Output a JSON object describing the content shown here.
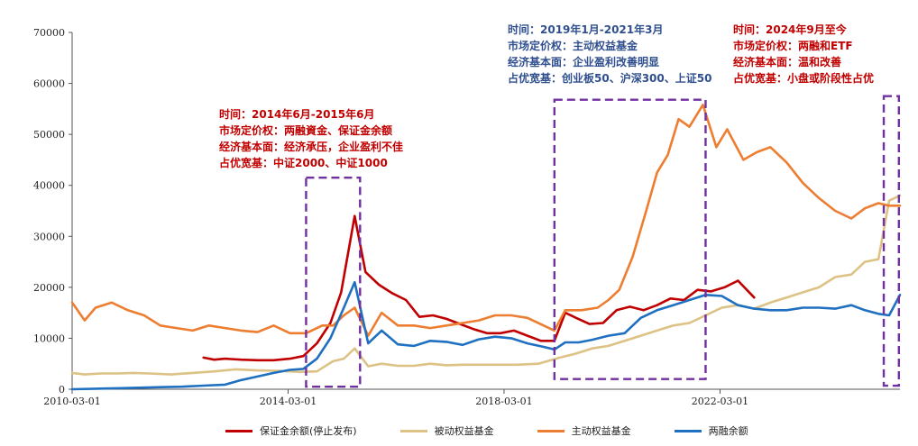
{
  "chart_data": {
    "type": "line",
    "title": "",
    "xlabel": "",
    "ylabel": "",
    "ylim": [
      0,
      70000
    ],
    "yticks": [
      0,
      10000,
      20000,
      30000,
      40000,
      50000,
      60000,
      70000
    ],
    "ytick_labels": [
      "0",
      "10000",
      "20000",
      "30000",
      "40000",
      "50000",
      "60000",
      "70000"
    ],
    "x_range": [
      2010.167,
      2025.5
    ],
    "xticks": [
      {
        "value": 2010.167,
        "label": "2010-03-01"
      },
      {
        "value": 2014.167,
        "label": "2014-03-01"
      },
      {
        "value": 2018.167,
        "label": "2018-03-01"
      },
      {
        "value": 2022.167,
        "label": "2022-03-01"
      }
    ],
    "series": [
      {
        "name": "保证金余额(停止发布)",
        "color": "#c00000",
        "x": [
          2012.6,
          2012.8,
          2013.0,
          2013.3,
          2013.6,
          2013.9,
          2014.2,
          2014.45,
          2014.7,
          2014.95,
          2015.15,
          2015.4,
          2015.6,
          2015.85,
          2016.1,
          2016.35,
          2016.6,
          2016.85,
          2017.1,
          2017.35,
          2017.6,
          2017.85,
          2018.1,
          2018.35,
          2018.6,
          2018.85,
          2019.1,
          2019.3,
          2019.5,
          2019.75,
          2020.0,
          2020.25,
          2020.5,
          2020.75,
          2021.0,
          2021.25,
          2021.5,
          2021.75,
          2022.0,
          2022.25,
          2022.5,
          2022.8
        ],
        "values": [
          6200,
          5800,
          6000,
          5800,
          5700,
          5700,
          6000,
          6500,
          9000,
          13000,
          19000,
          34000,
          23000,
          20500,
          18800,
          17500,
          14200,
          14500,
          13800,
          12800,
          11800,
          11000,
          11000,
          11500,
          10500,
          9500,
          9500,
          15000,
          14000,
          12800,
          13000,
          15500,
          16200,
          15500,
          16500,
          17800,
          17500,
          19500,
          19200,
          20000,
          21300,
          18000
        ]
      },
      {
        "name": "被动权益基金",
        "color": "#dcc285",
        "x": [
          2010.167,
          2010.4,
          2010.7,
          2011.0,
          2011.3,
          2011.6,
          2012.0,
          2012.4,
          2012.8,
          2013.2,
          2013.6,
          2014.0,
          2014.4,
          2014.7,
          2015.0,
          2015.2,
          2015.4,
          2015.65,
          2015.9,
          2016.2,
          2016.5,
          2016.8,
          2017.1,
          2017.4,
          2017.7,
          2018.0,
          2018.4,
          2018.8,
          2019.2,
          2019.5,
          2019.8,
          2020.1,
          2020.4,
          2020.7,
          2021.0,
          2021.3,
          2021.6,
          2021.9,
          2022.2,
          2022.5,
          2022.8,
          2023.1,
          2023.4,
          2023.7,
          2024.0,
          2024.3,
          2024.6,
          2024.85,
          2025.1,
          2025.3,
          2025.5
        ],
        "values": [
          3200,
          2900,
          3100,
          3100,
          3200,
          3100,
          2900,
          3200,
          3500,
          3900,
          3700,
          3600,
          3400,
          3500,
          5500,
          6000,
          8000,
          4500,
          5000,
          4600,
          4600,
          5000,
          4700,
          4800,
          4800,
          4800,
          4800,
          5000,
          6200,
          7000,
          8000,
          8500,
          9500,
          10500,
          11500,
          12500,
          13000,
          14500,
          16000,
          16500,
          15800,
          17000,
          18000,
          19000,
          20000,
          22000,
          22500,
          25000,
          25500,
          37000,
          38000
        ]
      },
      {
        "name": "主动权益基金",
        "color": "#ed7d31",
        "x": [
          2010.167,
          2010.4,
          2010.6,
          2010.9,
          2011.2,
          2011.5,
          2011.8,
          2012.1,
          2012.4,
          2012.7,
          2013.0,
          2013.3,
          2013.6,
          2013.9,
          2014.2,
          2014.5,
          2014.8,
          2015.0,
          2015.2,
          2015.4,
          2015.65,
          2015.9,
          2016.2,
          2016.5,
          2016.8,
          2017.1,
          2017.4,
          2017.7,
          2018.0,
          2018.3,
          2018.6,
          2018.9,
          2019.1,
          2019.3,
          2019.6,
          2019.9,
          2020.1,
          2020.3,
          2020.55,
          2020.8,
          2021.0,
          2021.2,
          2021.4,
          2021.6,
          2021.85,
          2022.1,
          2022.3,
          2022.6,
          2022.85,
          2023.1,
          2023.4,
          2023.7,
          2024.0,
          2024.3,
          2024.6,
          2024.85,
          2025.1,
          2025.3,
          2025.5
        ],
        "values": [
          17000,
          13500,
          16000,
          17000,
          15500,
          14500,
          12500,
          12000,
          11500,
          12500,
          12000,
          11500,
          11200,
          12500,
          11000,
          11000,
          12500,
          12500,
          14500,
          16000,
          10500,
          15000,
          12500,
          12500,
          12000,
          12500,
          13000,
          13500,
          14500,
          14500,
          14000,
          12500,
          11500,
          15500,
          15500,
          16000,
          17500,
          19500,
          26000,
          35000,
          42500,
          46000,
          53000,
          51500,
          55800,
          47500,
          51000,
          45000,
          46500,
          47500,
          44500,
          40500,
          37500,
          35000,
          33500,
          35500,
          36500,
          36000,
          36000
        ]
      },
      {
        "name": "两融余额",
        "color": "#1f70c1",
        "x": [
          2010.167,
          2010.6,
          2011.0,
          2011.4,
          2011.8,
          2012.2,
          2012.6,
          2013.0,
          2013.3,
          2013.6,
          2013.9,
          2014.2,
          2014.45,
          2014.7,
          2014.95,
          2015.2,
          2015.4,
          2015.65,
          2015.9,
          2016.2,
          2016.5,
          2016.8,
          2017.1,
          2017.4,
          2017.7,
          2018.0,
          2018.3,
          2018.6,
          2018.9,
          2019.1,
          2019.3,
          2019.55,
          2019.8,
          2020.1,
          2020.4,
          2020.7,
          2021.0,
          2021.3,
          2021.6,
          2021.9,
          2022.2,
          2022.5,
          2022.8,
          2023.1,
          2023.4,
          2023.7,
          2024.0,
          2024.3,
          2024.6,
          2024.85,
          2025.1,
          2025.3,
          2025.5
        ],
        "values": [
          0,
          100,
          200,
          300,
          400,
          500,
          700,
          900,
          1800,
          2500,
          3200,
          3800,
          4000,
          6000,
          10000,
          16000,
          21000,
          9000,
          11500,
          8800,
          8500,
          9500,
          9300,
          8700,
          9800,
          10300,
          10000,
          9000,
          8300,
          7800,
          9200,
          9200,
          9700,
          10500,
          11000,
          14000,
          15500,
          16500,
          17500,
          18500,
          18300,
          16500,
          15800,
          15500,
          15500,
          16000,
          16000,
          15800,
          16500,
          15500,
          14800,
          14500,
          18500
        ]
      }
    ],
    "legend_position": "bottom"
  },
  "annotations": [
    {
      "lines": [
        "时间：2014年6月-2015年6月",
        "市场定价权：两融資金、保证金余额",
        "经济基本面：经济承压，企业盈利不佳",
        "占优宽基：中证2000、中证1000"
      ],
      "color": "#c00000"
    },
    {
      "lines": [
        "时间：2019年1月-2021年3月",
        "市场定价权：主动权益基金",
        "经济基本面：企业盈利改善明显",
        "占优宽基：创业板50、沪深300、上证50"
      ],
      "color": "#2f4f8f"
    },
    {
      "lines": [
        "时间：2024年9月至今",
        "市场定价权：两融和ETF",
        "经济基本面：温和改善",
        "占优宽基：小盘或阶段性占优"
      ],
      "color": "#c00000"
    }
  ],
  "highlight_regions": [
    {
      "x_start": 2014.5,
      "x_end": 2015.5,
      "y_min": 500,
      "y_max": 41500
    },
    {
      "x_start": 2019.1,
      "x_end": 2021.9,
      "y_min": 2000,
      "y_max": 56800
    },
    {
      "x_start": 2025.2,
      "x_end": 2025.48,
      "y_min": 700,
      "y_max": 57500
    }
  ],
  "colors": {
    "box": "#7030a0",
    "axis": "#555555"
  }
}
